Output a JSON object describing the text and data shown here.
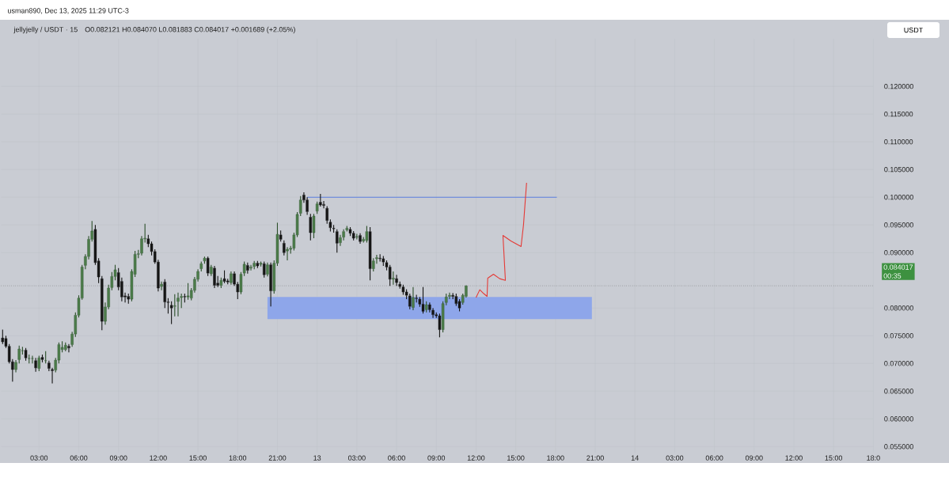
{
  "chart_data": {
    "type": "candlestick",
    "title": "jellyjelly / USDT · 15",
    "subtitle": "O0.082121  H0.084070  L0.081883  C0.084017  +0.001689 (+2.05%)",
    "ylabel": "USDT",
    "annotations": [
      "usman890, Dec 13, 2025 11:29 UTC-3",
      "00:35"
    ],
    "x": [
      "2025-12-12T00:15",
      "2025-12-12T00:30",
      "2025-12-12T00:45",
      "2025-12-12T01:00",
      "2025-12-12T01:15",
      "2025-12-12T01:30",
      "2025-12-12T01:45",
      "2025-12-12T02:00",
      "2025-12-12T02:15",
      "2025-12-12T02:30",
      "2025-12-12T02:45",
      "2025-12-12T03:00",
      "2025-12-12T03:15",
      "2025-12-12T03:30",
      "2025-12-12T03:45",
      "2025-12-12T04:00",
      "2025-12-12T04:15",
      "2025-12-12T04:30",
      "2025-12-12T04:45",
      "2025-12-12T05:00",
      "2025-12-12T05:15",
      "2025-12-12T05:30",
      "2025-12-12T05:45",
      "2025-12-12T06:00",
      "2025-12-12T06:15",
      "2025-12-12T06:30",
      "2025-12-12T06:45",
      "2025-12-12T07:00",
      "2025-12-12T07:15",
      "2025-12-12T07:30",
      "2025-12-12T07:45",
      "2025-12-12T08:00",
      "2025-12-12T08:15",
      "2025-12-12T08:30",
      "2025-12-12T08:45",
      "2025-12-12T09:00",
      "2025-12-12T09:15",
      "2025-12-12T09:30",
      "2025-12-12T09:45",
      "2025-12-12T10:00",
      "2025-12-12T10:15",
      "2025-12-12T10:30",
      "2025-12-12T10:45",
      "2025-12-12T11:00",
      "2025-12-12T11:15",
      "2025-12-12T11:30",
      "2025-12-12T11:45",
      "2025-12-12T12:00",
      "2025-12-12T12:15",
      "2025-12-12T12:30",
      "2025-12-12T12:45",
      "2025-12-12T13:00",
      "2025-12-12T13:15",
      "2025-12-12T13:30",
      "2025-12-12T13:45",
      "2025-12-12T14:00",
      "2025-12-12T14:15",
      "2025-12-12T14:30",
      "2025-12-12T14:45",
      "2025-12-12T15:00",
      "2025-12-12T15:15",
      "2025-12-12T15:30",
      "2025-12-12T15:45",
      "2025-12-12T16:00",
      "2025-12-12T16:15",
      "2025-12-12T16:30",
      "2025-12-12T16:45",
      "2025-12-12T17:00",
      "2025-12-12T17:15",
      "2025-12-12T17:30",
      "2025-12-12T17:45",
      "2025-12-12T18:00",
      "2025-12-12T18:15",
      "2025-12-12T18:30",
      "2025-12-12T18:45",
      "2025-12-12T19:00",
      "2025-12-12T19:15",
      "2025-12-12T19:30",
      "2025-12-12T19:45",
      "2025-12-12T20:00",
      "2025-12-12T20:15",
      "2025-12-12T20:30",
      "2025-12-12T20:45",
      "2025-12-12T21:00",
      "2025-12-12T21:15",
      "2025-12-12T21:30",
      "2025-12-12T21:45",
      "2025-12-12T22:00",
      "2025-12-12T22:15",
      "2025-12-12T22:30",
      "2025-12-12T22:45",
      "2025-12-12T23:00",
      "2025-12-12T23:15",
      "2025-12-12T23:30",
      "2025-12-12T23:45",
      "2025-12-13T00:00",
      "2025-12-13T00:15",
      "2025-12-13T00:30",
      "2025-12-13T00:45",
      "2025-12-13T01:00",
      "2025-12-13T01:15",
      "2025-12-13T01:30",
      "2025-12-13T01:45",
      "2025-12-13T02:00",
      "2025-12-13T02:15",
      "2025-12-13T02:30",
      "2025-12-13T02:45",
      "2025-12-13T03:00",
      "2025-12-13T03:15",
      "2025-12-13T03:30",
      "2025-12-13T03:45",
      "2025-12-13T04:00",
      "2025-12-13T04:15",
      "2025-12-13T04:30",
      "2025-12-13T04:45",
      "2025-12-13T05:00",
      "2025-12-13T05:15",
      "2025-12-13T05:30",
      "2025-12-13T05:45",
      "2025-12-13T06:00",
      "2025-12-13T06:15",
      "2025-12-13T06:30",
      "2025-12-13T06:45",
      "2025-12-13T07:00",
      "2025-12-13T07:15",
      "2025-12-13T07:30",
      "2025-12-13T07:45",
      "2025-12-13T08:00",
      "2025-12-13T08:15",
      "2025-12-13T08:30",
      "2025-12-13T08:45",
      "2025-12-13T09:00",
      "2025-12-13T09:15",
      "2025-12-13T09:30",
      "2025-12-13T09:45",
      "2025-12-13T10:00",
      "2025-12-13T10:15",
      "2025-12-13T10:30",
      "2025-12-13T10:45",
      "2025-12-13T11:00",
      "2025-12-13T11:15"
    ],
    "ohlc": [
      [
        0.0746,
        0.0761,
        0.0735,
        0.0739
      ],
      [
        0.0745,
        0.075,
        0.0728,
        0.0731
      ],
      [
        0.0731,
        0.0735,
        0.07,
        0.0703
      ],
      [
        0.0703,
        0.0708,
        0.0667,
        0.0689
      ],
      [
        0.0689,
        0.0706,
        0.0684,
        0.0702
      ],
      [
        0.0707,
        0.0732,
        0.07,
        0.0726
      ],
      [
        0.0723,
        0.073,
        0.0716,
        0.0723
      ],
      [
        0.0724,
        0.0728,
        0.0705,
        0.071
      ],
      [
        0.0709,
        0.0716,
        0.07,
        0.0709
      ],
      [
        0.0709,
        0.0714,
        0.07,
        0.0709
      ],
      [
        0.0705,
        0.071,
        0.0685,
        0.0692
      ],
      [
        0.0691,
        0.0714,
        0.0686,
        0.071
      ],
      [
        0.0711,
        0.0716,
        0.0702,
        0.0707
      ],
      [
        0.0705,
        0.0722,
        0.07,
        0.0705
      ],
      [
        0.0701,
        0.0705,
        0.0686,
        0.0691
      ],
      [
        0.0689,
        0.0692,
        0.0664,
        0.0687
      ],
      [
        0.0688,
        0.071,
        0.0684,
        0.0706
      ],
      [
        0.0706,
        0.0738,
        0.07,
        0.0734
      ],
      [
        0.0725,
        0.074,
        0.072,
        0.0729
      ],
      [
        0.0725,
        0.0738,
        0.0722,
        0.0733
      ],
      [
        0.0731,
        0.0735,
        0.072,
        0.0728
      ],
      [
        0.0734,
        0.0757,
        0.073,
        0.0753
      ],
      [
        0.0753,
        0.0792,
        0.0748,
        0.0787
      ],
      [
        0.0787,
        0.0823,
        0.0783,
        0.0818
      ],
      [
        0.0818,
        0.0878,
        0.0815,
        0.0874
      ],
      [
        0.0877,
        0.0897,
        0.087,
        0.0893
      ],
      [
        0.0893,
        0.093,
        0.0888,
        0.0924
      ],
      [
        0.0924,
        0.0957,
        0.092,
        0.0939
      ],
      [
        0.0942,
        0.095,
        0.0878,
        0.0882
      ],
      [
        0.0885,
        0.089,
        0.0845,
        0.0856
      ],
      [
        0.0853,
        0.0858,
        0.076,
        0.0776
      ],
      [
        0.0776,
        0.081,
        0.077,
        0.0802
      ],
      [
        0.0802,
        0.0842,
        0.0798,
        0.0836
      ],
      [
        0.0837,
        0.0865,
        0.0832,
        0.0857
      ],
      [
        0.0857,
        0.0878,
        0.085,
        0.0869
      ],
      [
        0.0864,
        0.0872,
        0.0832,
        0.0838
      ],
      [
        0.0848,
        0.0855,
        0.0812,
        0.082
      ],
      [
        0.0822,
        0.0828,
        0.081,
        0.082
      ],
      [
        0.0821,
        0.0826,
        0.0808,
        0.0816
      ],
      [
        0.0816,
        0.087,
        0.0812,
        0.0866
      ],
      [
        0.0861,
        0.0903,
        0.0856,
        0.0897
      ],
      [
        0.0897,
        0.0905,
        0.089,
        0.0898
      ],
      [
        0.0899,
        0.093,
        0.0895,
        0.0925
      ],
      [
        0.0925,
        0.0952,
        0.0918,
        0.0926
      ],
      [
        0.0925,
        0.0932,
        0.091,
        0.0916
      ],
      [
        0.0916,
        0.092,
        0.0895,
        0.0902
      ],
      [
        0.0902,
        0.0906,
        0.088,
        0.0883
      ],
      [
        0.0883,
        0.0887,
        0.083,
        0.0836
      ],
      [
        0.0839,
        0.0848,
        0.0832,
        0.0843
      ],
      [
        0.0847,
        0.0852,
        0.08,
        0.0811
      ],
      [
        0.0811,
        0.0818,
        0.079,
        0.081
      ],
      [
        0.0805,
        0.0812,
        0.0771,
        0.08
      ],
      [
        0.0803,
        0.0825,
        0.0785,
        0.0804
      ],
      [
        0.0812,
        0.0828,
        0.0785,
        0.0818
      ],
      [
        0.0819,
        0.0826,
        0.08,
        0.0821
      ],
      [
        0.0821,
        0.0826,
        0.081,
        0.082
      ],
      [
        0.082,
        0.0845,
        0.0815,
        0.0822
      ],
      [
        0.0818,
        0.0836,
        0.0814,
        0.0832
      ],
      [
        0.0832,
        0.0856,
        0.0828,
        0.0852
      ],
      [
        0.0852,
        0.087,
        0.0848,
        0.0866
      ],
      [
        0.0871,
        0.0884,
        0.0866,
        0.088
      ],
      [
        0.0885,
        0.0893,
        0.088,
        0.089
      ],
      [
        0.089,
        0.0893,
        0.0858,
        0.0863
      ],
      [
        0.0862,
        0.0878,
        0.0858,
        0.0874
      ],
      [
        0.0872,
        0.0876,
        0.0836,
        0.0841
      ],
      [
        0.0845,
        0.0858,
        0.0838,
        0.0841
      ],
      [
        0.0841,
        0.0855,
        0.0836,
        0.085
      ],
      [
        0.0853,
        0.0868,
        0.0845,
        0.0848
      ],
      [
        0.0849,
        0.0853,
        0.0843,
        0.0847
      ],
      [
        0.0846,
        0.0866,
        0.0842,
        0.0862
      ],
      [
        0.0862,
        0.0866,
        0.084,
        0.0843
      ],
      [
        0.0843,
        0.0847,
        0.0816,
        0.0829
      ],
      [
        0.0829,
        0.0865,
        0.0825,
        0.0861
      ],
      [
        0.0863,
        0.0884,
        0.0858,
        0.0879
      ],
      [
        0.0877,
        0.0882,
        0.0862,
        0.0868
      ],
      [
        0.0872,
        0.0878,
        0.0868,
        0.0874
      ],
      [
        0.0875,
        0.0885,
        0.087,
        0.0881
      ],
      [
        0.0881,
        0.0885,
        0.0872,
        0.0876
      ],
      [
        0.0879,
        0.0884,
        0.0875,
        0.0881
      ],
      [
        0.088,
        0.0884,
        0.0855,
        0.086
      ],
      [
        0.0861,
        0.0882,
        0.0857,
        0.0878
      ],
      [
        0.0878,
        0.0882,
        0.0803,
        0.0831
      ],
      [
        0.0831,
        0.0886,
        0.0826,
        0.0881
      ],
      [
        0.0881,
        0.0954,
        0.0876,
        0.0933
      ],
      [
        0.0932,
        0.094,
        0.092,
        0.0924
      ],
      [
        0.0917,
        0.0922,
        0.0895,
        0.09
      ],
      [
        0.0903,
        0.091,
        0.0886,
        0.0906
      ],
      [
        0.0906,
        0.0912,
        0.0898,
        0.0908
      ],
      [
        0.0908,
        0.0936,
        0.0904,
        0.0932
      ],
      [
        0.0932,
        0.0973,
        0.0928,
        0.0969
      ],
      [
        0.0971,
        0.1002,
        0.0966,
        0.0995
      ],
      [
        0.1004,
        0.1009,
        0.099,
        0.0995
      ],
      [
        0.0995,
        0.1,
        0.0968,
        0.0974
      ],
      [
        0.0964,
        0.097,
        0.0922,
        0.0936
      ],
      [
        0.0936,
        0.097,
        0.0926,
        0.0966
      ],
      [
        0.0975,
        0.0992,
        0.097,
        0.0988
      ],
      [
        0.0991,
        0.1006,
        0.0983,
        0.0986
      ],
      [
        0.0987,
        0.0993,
        0.098,
        0.0985
      ],
      [
        0.098,
        0.0984,
        0.0952,
        0.0958
      ],
      [
        0.0955,
        0.096,
        0.0938,
        0.0945
      ],
      [
        0.0944,
        0.095,
        0.0936,
        0.0943
      ],
      [
        0.0938,
        0.0942,
        0.09,
        0.0917
      ],
      [
        0.0918,
        0.0932,
        0.0912,
        0.0927
      ],
      [
        0.0928,
        0.0942,
        0.0922,
        0.0938
      ],
      [
        0.0941,
        0.0948,
        0.0938,
        0.0944
      ],
      [
        0.0942,
        0.0946,
        0.093,
        0.0935
      ],
      [
        0.0935,
        0.0939,
        0.0922,
        0.0926
      ],
      [
        0.0928,
        0.0934,
        0.0924,
        0.0929
      ],
      [
        0.0931,
        0.0935,
        0.0916,
        0.092
      ],
      [
        0.0921,
        0.0928,
        0.0918,
        0.0924
      ],
      [
        0.0922,
        0.0948,
        0.0918,
        0.0938
      ],
      [
        0.0938,
        0.0946,
        0.085,
        0.0871
      ],
      [
        0.0871,
        0.089,
        0.0866,
        0.0885
      ],
      [
        0.0889,
        0.0896,
        0.088,
        0.0891
      ],
      [
        0.089,
        0.0897,
        0.0884,
        0.0889
      ],
      [
        0.0889,
        0.0894,
        0.0876,
        0.0883
      ],
      [
        0.0882,
        0.0886,
        0.0868,
        0.0874
      ],
      [
        0.0874,
        0.0878,
        0.084,
        0.0852
      ],
      [
        0.0852,
        0.0866,
        0.0842,
        0.0854
      ],
      [
        0.0853,
        0.086,
        0.084,
        0.0846
      ],
      [
        0.0843,
        0.0848,
        0.0835,
        0.0839
      ],
      [
        0.0838,
        0.0842,
        0.0824,
        0.0829
      ],
      [
        0.0829,
        0.0834,
        0.0816,
        0.0823
      ],
      [
        0.0822,
        0.0826,
        0.0798,
        0.0803
      ],
      [
        0.0801,
        0.0838,
        0.0796,
        0.0819
      ],
      [
        0.0818,
        0.0824,
        0.081,
        0.0817
      ],
      [
        0.0816,
        0.082,
        0.0802,
        0.0807
      ],
      [
        0.0807,
        0.0838,
        0.079,
        0.0794
      ],
      [
        0.0797,
        0.0812,
        0.0792,
        0.0806
      ],
      [
        0.0806,
        0.081,
        0.0792,
        0.0797
      ],
      [
        0.0796,
        0.08,
        0.0782,
        0.0788
      ],
      [
        0.0788,
        0.0792,
        0.0782,
        0.0786
      ],
      [
        0.0786,
        0.079,
        0.0747,
        0.0761
      ],
      [
        0.0761,
        0.0812,
        0.0756,
        0.0808
      ],
      [
        0.081,
        0.0826,
        0.0805,
        0.082
      ],
      [
        0.0821,
        0.0828,
        0.0816,
        0.0823
      ],
      [
        0.0823,
        0.0827,
        0.0816,
        0.0821
      ],
      [
        0.0821,
        0.0826,
        0.0804,
        0.0808
      ],
      [
        0.0812,
        0.0816,
        0.0794,
        0.08
      ],
      [
        0.081,
        0.0826,
        0.0806,
        0.0823
      ],
      [
        0.082121,
        0.08407,
        0.081883,
        0.084017
      ]
    ],
    "series": [
      {
        "type": "line",
        "x": [
          "2025-12-12T20:15",
          "2025-12-13T20:45"
        ],
        "values": [
          null,
          null
        ],
        "lower": [
          0.078,
          0.078
        ],
        "upper": [
          0.082,
          0.082
        ],
        "color": "#8ea6ea"
      },
      {
        "type": "line",
        "x": [
          "2025-12-12T23:15",
          "2025-12-13T18:06"
        ],
        "values": [
          0.1,
          0.1
        ],
        "color": "#5b7fe0"
      },
      {
        "type": "line",
        "x": [
          "2025-12-13T12:00",
          "2025-12-13T12:17",
          "2025-12-13T12:35",
          "2025-12-13T12:50",
          "2025-12-13T12:53",
          "2025-12-13T13:19",
          "2025-12-13T13:47",
          "2025-12-13T14:13",
          "2025-12-13T14:02",
          "2025-12-13T14:38",
          "2025-12-13T15:24",
          "2025-12-13T15:35",
          "2025-12-13T15:49"
        ],
        "values": [
          0.0819,
          0.0833,
          0.0826,
          0.0821,
          0.0854,
          0.0861,
          0.0853,
          0.085,
          0.0931,
          0.0921,
          0.0911,
          0.095,
          0.1026
        ],
        "color": "#e53935"
      }
    ],
    "ref_lines": [
      {
        "axis": "y",
        "value": 0.084017,
        "label": "0.084017",
        "color": "#555555",
        "line_style": "dotted"
      }
    ],
    "xlim": [
      "2025-12-12T00:08",
      "2025-12-14T18:00"
    ],
    "ylim": [
      0.0539,
      0.1286
    ],
    "xticks": [
      {
        "value": "2025-12-12T03:00",
        "label": "03:00"
      },
      {
        "value": "2025-12-12T06:00",
        "label": "06:00"
      },
      {
        "value": "2025-12-12T09:00",
        "label": "09:00"
      },
      {
        "value": "2025-12-12T12:00",
        "label": "12:00"
      },
      {
        "value": "2025-12-12T15:00",
        "label": "15:00"
      },
      {
        "value": "2025-12-12T18:00",
        "label": "18:00"
      },
      {
        "value": "2025-12-12T21:00",
        "label": "21:00"
      },
      {
        "value": "2025-12-13",
        "label": "13"
      },
      {
        "value": "2025-12-13T03:00",
        "label": "03:00"
      },
      {
        "value": "2025-12-13T06:00",
        "label": "06:00"
      },
      {
        "value": "2025-12-13T09:00",
        "label": "09:00"
      },
      {
        "value": "2025-12-13T12:00",
        "label": "12:00"
      },
      {
        "value": "2025-12-13T15:00",
        "label": "15:00"
      },
      {
        "value": "2025-12-13T18:00",
        "label": "18:00"
      },
      {
        "value": "2025-12-13T21:00",
        "label": "21:00"
      },
      {
        "value": "2025-12-14",
        "label": "14"
      },
      {
        "value": "2025-12-14T03:00",
        "label": "03:00"
      },
      {
        "value": "2025-12-14T06:00",
        "label": "06:00"
      },
      {
        "value": "2025-12-14T09:00",
        "label": "09:00"
      },
      {
        "value": "2025-12-14T12:00",
        "label": "12:00"
      },
      {
        "value": "2025-12-14T15:00",
        "label": "15:00"
      },
      {
        "value": "2025-12-14T18:00",
        "label": "18:0"
      }
    ],
    "yticks": [
      {
        "value": 0.055,
        "label": "0.055000"
      },
      {
        "value": 0.06,
        "label": "0.060000"
      },
      {
        "value": 0.065,
        "label": "0.065000"
      },
      {
        "value": 0.07,
        "label": "0.070000"
      },
      {
        "value": 0.075,
        "label": "0.075000"
      },
      {
        "value": 0.08,
        "label": "0.080000"
      },
      {
        "value": 0.09,
        "label": "0.090000"
      },
      {
        "value": 0.095,
        "label": "0.095000"
      },
      {
        "value": 0.1,
        "label": "0.100000"
      },
      {
        "value": 0.105,
        "label": "0.105000"
      },
      {
        "value": 0.11,
        "label": "0.110000"
      },
      {
        "value": 0.115,
        "label": "0.115000"
      },
      {
        "value": 0.12,
        "label": "0.120000"
      }
    ],
    "grid": true
  }
}
